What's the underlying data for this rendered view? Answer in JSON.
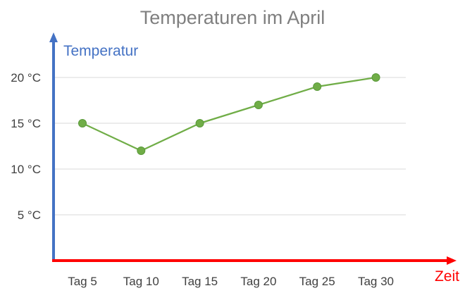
{
  "chart_data": {
    "type": "line",
    "title": "Temperaturen im April",
    "xlabel": "Zeit",
    "ylabel": "Temperatur",
    "categories": [
      "Tag 5",
      "Tag 10",
      "Tag 15",
      "Tag 20",
      "Tag 25",
      "Tag 30"
    ],
    "series": [
      {
        "values": [
          15,
          12,
          15,
          17,
          19,
          20
        ]
      }
    ],
    "ylim": [
      0,
      20
    ],
    "yticks": [
      {
        "value": 5,
        "label": "5 °C"
      },
      {
        "value": 10,
        "label": "10 °C"
      },
      {
        "value": 15,
        "label": "15 °C"
      },
      {
        "value": 20,
        "label": "20 °C"
      }
    ],
    "grid": true,
    "legend": "none",
    "colors": {
      "series": "#70ad47",
      "marker": "#70ad47",
      "y_axis": "#4472c4",
      "x_axis": "#ff0000",
      "title": "#7f7f7f",
      "grid": "#d9d9d9"
    }
  }
}
